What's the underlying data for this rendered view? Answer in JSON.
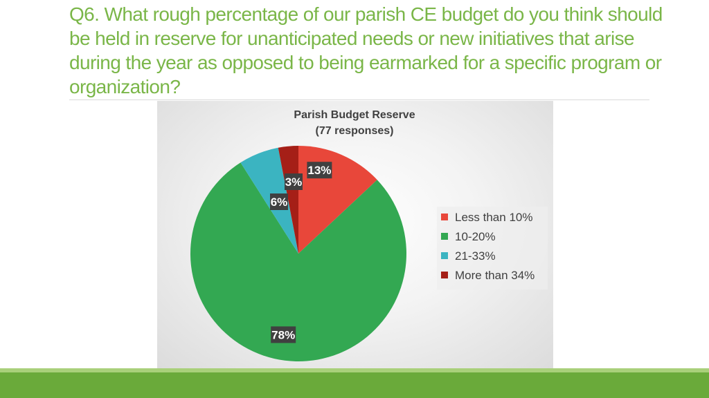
{
  "slide": {
    "title": "Q6. What rough percentage of our parish CE budget do you think should be held in reserve for unanticipated needs or new initiatives that arise during the year as opposed to being earmarked for a specific program or organization?"
  },
  "colors": {
    "title": "#7ab648",
    "accent_bar": "#6aaa3a"
  },
  "chart_data": {
    "type": "pie",
    "title": [
      "Parish Budget Reserve",
      "(77 responses)"
    ],
    "categories": [
      "Less than 10%",
      "10-20%",
      "21-33%",
      "More than 34%"
    ],
    "values": [
      13,
      78,
      6,
      3
    ],
    "data_labels": [
      "13%",
      "78%",
      "6%",
      "3%"
    ],
    "colors": [
      "#e8473a",
      "#33a852",
      "#3bb4c1",
      "#a51f17"
    ],
    "legend_position": "right"
  }
}
